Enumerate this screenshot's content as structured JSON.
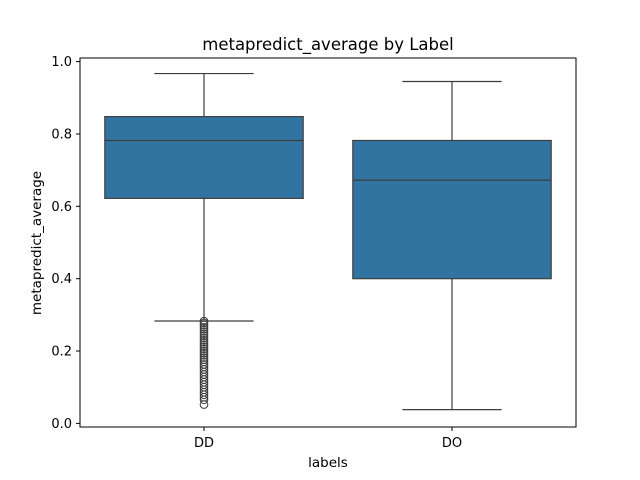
{
  "chart_data": {
    "type": "boxplot",
    "title": "metapredict_average by Label",
    "xlabel": "labels",
    "ylabel": "metapredict_average",
    "categories": [
      "DD",
      "DO"
    ],
    "ylim": [
      -0.01,
      1.01
    ],
    "yticks": [
      0.0,
      0.2,
      0.4,
      0.6,
      0.8,
      1.0
    ],
    "ytick_labels": [
      "0.0",
      "0.2",
      "0.4",
      "0.6",
      "0.8",
      "1.0"
    ],
    "grid": false,
    "box_color": "#3274a1",
    "line_color": "#3d3d3d",
    "boxes": [
      {
        "category": "DD",
        "whisker_low": 0.283,
        "q1": 0.622,
        "median": 0.782,
        "q3": 0.848,
        "whisker_high": 0.967,
        "outliers": [
          0.283,
          0.278,
          0.272,
          0.266,
          0.26,
          0.254,
          0.248,
          0.242,
          0.236,
          0.23,
          0.224,
          0.218,
          0.212,
          0.206,
          0.2,
          0.194,
          0.188,
          0.182,
          0.176,
          0.17,
          0.163,
          0.156,
          0.149,
          0.142,
          0.135,
          0.128,
          0.121,
          0.114,
          0.107,
          0.1,
          0.093,
          0.086,
          0.079,
          0.072,
          0.065,
          0.052
        ]
      },
      {
        "category": "DO",
        "whisker_low": 0.038,
        "q1": 0.4,
        "median": 0.672,
        "q3": 0.782,
        "whisker_high": 0.945,
        "outliers": []
      }
    ]
  }
}
